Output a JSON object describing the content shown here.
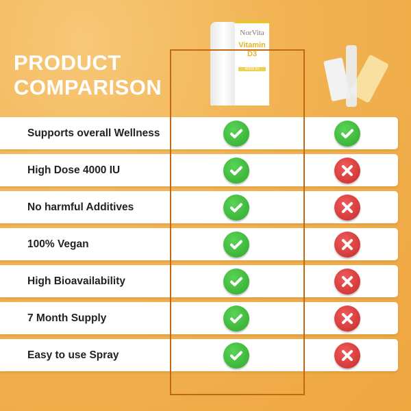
{
  "title": [
    "PRODUCT",
    "COMPARISON"
  ],
  "product": {
    "brand": "NorVita",
    "name": "Vitamin D3",
    "dose": "4000 IU"
  },
  "colors": {
    "background": "#f2b455",
    "frame": "#c2690f",
    "check": "#3cbb3a",
    "cross": "#d93a3a"
  },
  "rows": [
    {
      "feature": "Supports overall Wellness",
      "norvita": "check",
      "other": "check"
    },
    {
      "feature": "High Dose 4000 IU",
      "norvita": "check",
      "other": "cross"
    },
    {
      "feature": "No harmful Additives",
      "norvita": "check",
      "other": "cross"
    },
    {
      "feature": "100% Vegan",
      "norvita": "check",
      "other": "cross"
    },
    {
      "feature": "High Bioavailability",
      "norvita": "check",
      "other": "cross"
    },
    {
      "feature": "7 Month Supply",
      "norvita": "check",
      "other": "cross"
    },
    {
      "feature": "Easy to use Spray",
      "norvita": "check",
      "other": "cross"
    }
  ]
}
